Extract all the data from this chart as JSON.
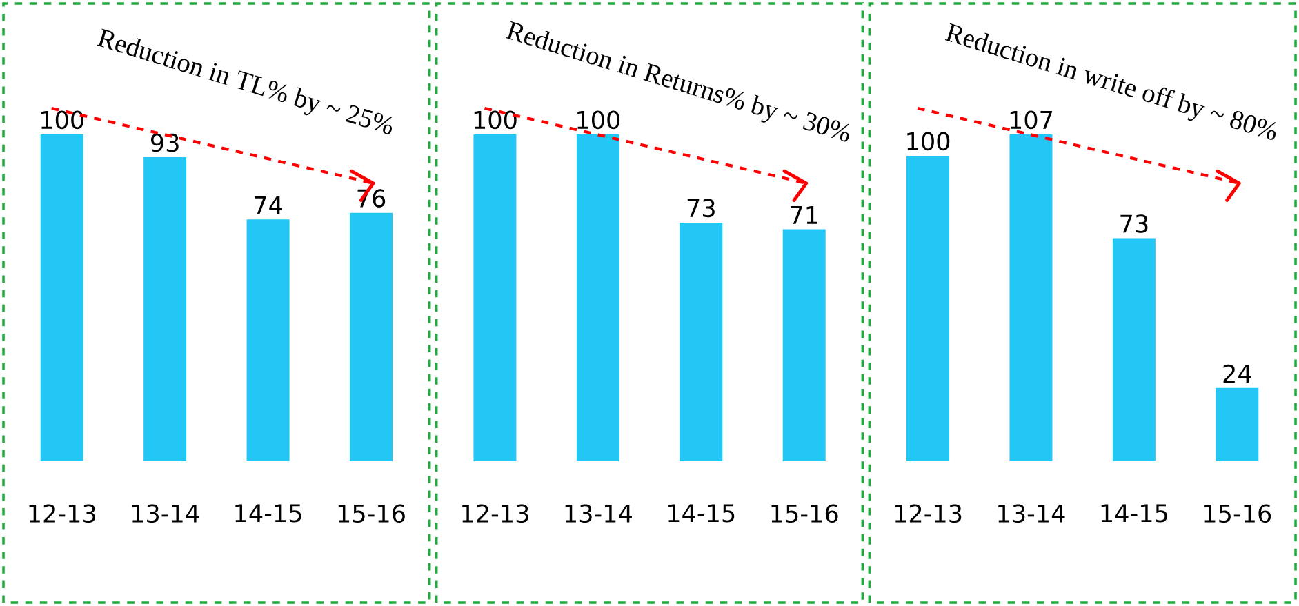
{
  "chart_data": [
    {
      "type": "bar",
      "categories": [
        "12-13",
        "13-14",
        "14-15",
        "15-16"
      ],
      "values": [
        100,
        93,
        74,
        76
      ],
      "color": "#22c7f5",
      "data_labels": true,
      "annotations": [
        "Reduction in TL% by ~ 25%"
      ]
    },
    {
      "type": "bar",
      "categories": [
        "12-13",
        "13-14",
        "14-15",
        "15-16"
      ],
      "values": [
        100,
        100,
        73,
        71
      ],
      "color": "#22c7f5",
      "data_labels": true,
      "annotations": [
        "Reduction in Returns% by ~ 30%"
      ]
    },
    {
      "type": "bar",
      "categories": [
        "12-13",
        "13-14",
        "14-15",
        "15-16"
      ],
      "values": [
        100,
        107,
        73,
        24
      ],
      "color": "#22c7f5",
      "data_labels": true,
      "annotations": [
        "Reduction in write off by ~ 80%"
      ]
    }
  ]
}
